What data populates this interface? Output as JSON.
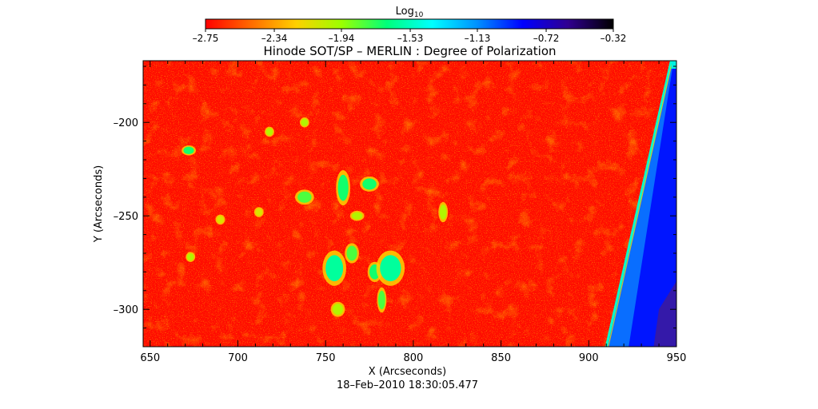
{
  "chart_data": {
    "type": "heatmap",
    "title": "Hinode SOT/SP – MERLIN : Degree of Polarization",
    "xlabel": "X (Arcseconds)",
    "ylabel": "Y (Arcseconds)",
    "date_label": "18–Feb–2010 18:30:05.477",
    "xlim": [
      646,
      950
    ],
    "ylim": [
      -320,
      -167
    ],
    "x_ticks": [
      650,
      700,
      750,
      800,
      850,
      900,
      950
    ],
    "y_ticks": [
      -200,
      -250,
      -300
    ],
    "x_tick_labels": [
      "650",
      "700",
      "750",
      "800",
      "850",
      "900",
      "950"
    ],
    "y_tick_labels": [
      "–200",
      "–250",
      "–300"
    ],
    "colorbar": {
      "label_base": "Log",
      "label_sub": "10",
      "range": [
        -2.75,
        -0.32
      ],
      "ticks": [
        -2.75,
        -2.34,
        -1.94,
        -1.53,
        -1.13,
        -0.72,
        -0.32
      ],
      "tick_labels": [
        "–2.75",
        "–2.34",
        "–1.94",
        "–1.53",
        "–1.13",
        "–0.72",
        "–0.32"
      ],
      "colors": [
        "#ff0000",
        "#ff6a00",
        "#ffd000",
        "#9cff00",
        "#00ff7a",
        "#00ffff",
        "#0090ff",
        "#0000ff",
        "#300090",
        "#000000"
      ]
    },
    "background_level": -2.72,
    "regions": [
      {
        "x": 755,
        "y": -278,
        "rx": 5,
        "ry": 7,
        "value": -1.6
      },
      {
        "x": 765,
        "y": -270,
        "rx": 3,
        "ry": 4,
        "value": -1.8
      },
      {
        "x": 778,
        "y": -280,
        "rx": 3,
        "ry": 4,
        "value": -1.7
      },
      {
        "x": 787,
        "y": -278,
        "rx": 6,
        "ry": 7,
        "value": -1.6
      },
      {
        "x": 782,
        "y": -295,
        "rx": 2,
        "ry": 5,
        "value": -1.8
      },
      {
        "x": 760,
        "y": -235,
        "rx": 3,
        "ry": 7,
        "value": -1.7
      },
      {
        "x": 775,
        "y": -233,
        "rx": 4,
        "ry": 3,
        "value": -1.7
      },
      {
        "x": 738,
        "y": -240,
        "rx": 4,
        "ry": 3,
        "value": -1.8
      },
      {
        "x": 672,
        "y": -215,
        "rx": 3,
        "ry": 2,
        "value": -1.7
      },
      {
        "x": 738,
        "y": -200,
        "rx": 2,
        "ry": 2,
        "value": -2.0
      },
      {
        "x": 817,
        "y": -248,
        "rx": 2,
        "ry": 4,
        "value": -2.0
      },
      {
        "x": 768,
        "y": -250,
        "rx": 3,
        "ry": 2,
        "value": -2.0
      },
      {
        "x": 712,
        "y": -248,
        "rx": 2,
        "ry": 2,
        "value": -2.1
      },
      {
        "x": 673,
        "y": -272,
        "rx": 2,
        "ry": 2,
        "value": -2.0
      },
      {
        "x": 690,
        "y": -252,
        "rx": 2,
        "ry": 2,
        "value": -2.1
      },
      {
        "x": 718,
        "y": -205,
        "rx": 2,
        "ry": 2,
        "value": -2.0
      },
      {
        "x": 757,
        "y": -300,
        "rx": 3,
        "ry": 3,
        "value": -2.0
      }
    ],
    "limb": {
      "top": {
        "x": 947,
        "y": -167
      },
      "bottom": {
        "x": 910,
        "y": -320
      },
      "outside_level": -0.9,
      "edge_level": -1.5
    }
  }
}
